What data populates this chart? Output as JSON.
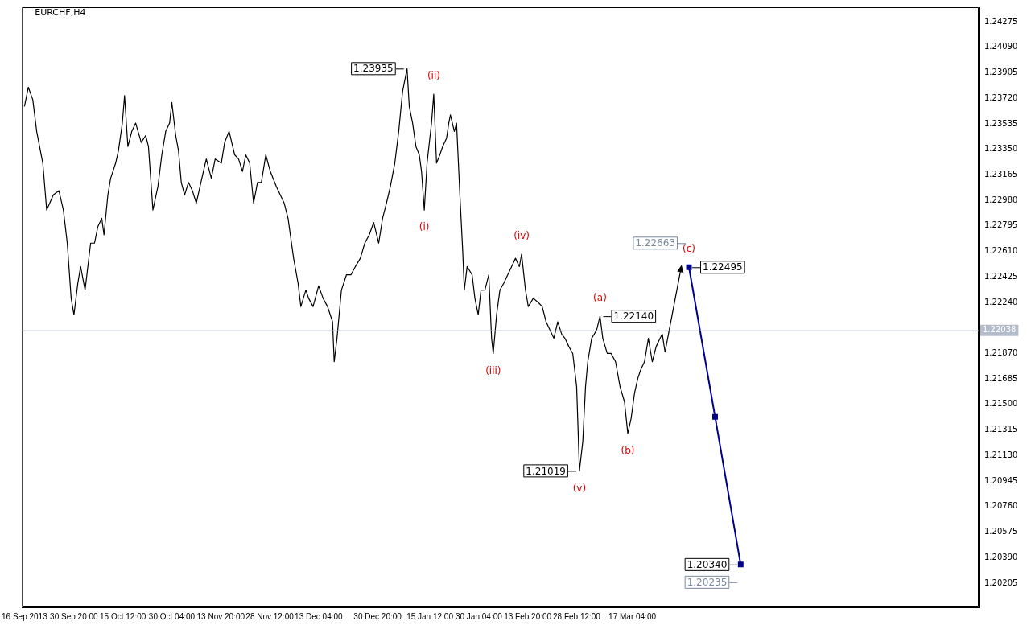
{
  "chart_data": {
    "type": "line",
    "title": "EURCHF,H4",
    "xlim": [
      "2013-09-15T06:00",
      "2014-06-29T00:00"
    ],
    "ylim": [
      1.2003,
      1.2438
    ],
    "xticks": [
      {
        "value": "2013-09-16T00:00",
        "label": "16 Sep 2013"
      },
      {
        "value": "2013-09-30T20:00",
        "label": "30 Sep 20:00"
      },
      {
        "value": "2013-10-15T12:00",
        "label": "15 Oct 12:00"
      },
      {
        "value": "2013-10-30T04:00",
        "label": "30 Oct 04:00"
      },
      {
        "value": "2013-11-13T20:00",
        "label": "13 Nov 20:00"
      },
      {
        "value": "2013-11-28T12:00",
        "label": "28 Nov 12:00"
      },
      {
        "value": "2013-12-13T04:00",
        "label": "13 Dec 04:00"
      },
      {
        "value": "2013-12-30T20:00",
        "label": "30 Dec 20:00"
      },
      {
        "value": "2014-01-15T12:00",
        "label": "15 Jan 12:00"
      },
      {
        "value": "2014-01-30T04:00",
        "label": "30 Jan 04:00"
      },
      {
        "value": "2014-02-13T20:00",
        "label": "13 Feb 20:00"
      },
      {
        "value": "2014-02-28T12:00",
        "label": "28 Feb 12:00"
      },
      {
        "value": "2014-03-17T04:00",
        "label": "17 Mar 04:00"
      }
    ],
    "yticks": [
      {
        "value": 1.24275,
        "label": "1.24275"
      },
      {
        "value": 1.2409,
        "label": "1.24090"
      },
      {
        "value": 1.23905,
        "label": "1.23905"
      },
      {
        "value": 1.2372,
        "label": "1.23720"
      },
      {
        "value": 1.23535,
        "label": "1.23535"
      },
      {
        "value": 1.2335,
        "label": "1.23350"
      },
      {
        "value": 1.23165,
        "label": "1.23165"
      },
      {
        "value": 1.2298,
        "label": "1.22980"
      },
      {
        "value": 1.22795,
        "label": "1.22795"
      },
      {
        "value": 1.2261,
        "label": "1.22610"
      },
      {
        "value": 1.22425,
        "label": "1.22425"
      },
      {
        "value": 1.2224,
        "label": "1.22240"
      },
      {
        "value": 1.2187,
        "label": "1.21870"
      },
      {
        "value": 1.21685,
        "label": "1.21685"
      },
      {
        "value": 1.215,
        "label": "1.21500"
      },
      {
        "value": 1.21315,
        "label": "1.21315"
      },
      {
        "value": 1.2113,
        "label": "1.21130"
      },
      {
        "value": 1.20945,
        "label": "1.20945"
      },
      {
        "value": 1.2076,
        "label": "1.20760"
      },
      {
        "value": 1.20575,
        "label": "1.20575"
      },
      {
        "value": 1.2039,
        "label": "1.20390"
      },
      {
        "value": 1.20205,
        "label": "1.20205"
      }
    ],
    "grid": false,
    "legend": false,
    "series": [
      {
        "color": "#000000",
        "x": [
          "2013-09-16T00:00",
          "2013-09-17T04:00",
          "2013-09-18T12:00",
          "2013-09-19T16:00",
          "2013-09-21T12:00",
          "2013-09-22T16:00",
          "2013-09-24T16:00",
          "2013-09-26T08:00",
          "2013-09-27T16:00",
          "2013-09-28T20:00",
          "2013-09-30T00:00",
          "2013-09-30T20:00",
          "2013-10-02T00:00",
          "2013-10-02T20:00",
          "2013-10-04T04:00",
          "2013-10-05T20:00",
          "2013-10-07T00:00",
          "2013-10-08T00:00",
          "2013-10-09T04:00",
          "2013-10-09T20:00",
          "2013-10-11T00:00",
          "2013-10-11T20:00",
          "2013-10-13T08:00",
          "2013-10-14T04:00",
          "2013-10-15T08:00",
          "2013-10-16T00:00",
          "2013-10-17T00:00",
          "2013-10-18T04:00",
          "2013-10-19T08:00",
          "2013-10-21T00:00",
          "2013-10-22T08:00",
          "2013-10-23T04:00",
          "2013-10-23T20:00",
          "2013-10-24T12:00",
          "2013-10-26T00:00",
          "2013-10-27T04:00",
          "2013-10-28T08:00",
          "2013-10-29T12:00",
          "2013-10-30T04:00",
          "2013-10-31T08:00",
          "2013-11-01T04:00",
          "2013-11-02T00:00",
          "2013-11-03T00:00",
          "2013-11-04T04:00",
          "2013-11-05T08:00",
          "2013-11-06T12:00",
          "2013-11-08T04:00",
          "2013-11-09T12:00",
          "2013-11-11T00:00",
          "2013-11-12T04:00",
          "2013-11-14T00:00",
          "2013-11-15T00:00",
          "2013-11-16T08:00",
          "2013-11-18T00:00",
          "2013-11-19T04:00",
          "2013-11-20T08:00",
          "2013-11-21T08:00",
          "2013-11-22T12:00",
          "2013-11-23T16:00",
          "2013-11-24T20:00",
          "2013-11-26T00:00",
          "2013-11-27T08:00",
          "2013-11-28T16:00",
          "2013-11-30T12:00",
          "2013-12-02T20:00",
          "2013-12-04T00:00",
          "2013-12-05T16:00",
          "2013-12-07T00:00",
          "2013-12-07T20:00",
          "2013-12-09T08:00",
          "2013-12-10T04:00",
          "2013-12-11T12:00",
          "2013-12-13T04:00",
          "2013-12-14T12:00",
          "2013-12-15T20:00",
          "2013-12-17T08:00",
          "2013-12-17T20:00",
          "2013-12-18T16:00",
          "2013-12-20T00:00",
          "2013-12-21T12:00",
          "2013-12-22T20:00",
          "2013-12-24T04:00",
          "2013-12-25T16:00",
          "2013-12-27T00:00",
          "2013-12-28T08:00",
          "2013-12-29T16:00",
          "2013-12-31T04:00",
          "2014-01-01T08:00",
          "2014-01-02T12:00",
          "2014-01-03T16:00",
          "2014-01-05T00:00",
          "2014-01-06T04:00",
          "2014-01-07T08:00",
          "2014-01-08T16:00",
          "2014-01-09T08:00",
          "2014-01-10T08:00",
          "2014-01-11T08:00",
          "2014-01-12T08:00",
          "2014-01-13T00:00",
          "2014-01-13T20:00",
          "2014-01-14T16:00",
          "2014-01-16T00:00",
          "2014-01-16T16:00",
          "2014-01-17T12:00",
          "2014-01-18T12:00",
          "2014-01-19T08:00",
          "2014-01-20T12:00",
          "2014-01-21T04:00",
          "2014-01-21T16:00",
          "2014-01-22T20:00",
          "2014-01-23T12:00",
          "2014-01-24T12:00",
          "2014-01-25T08:00",
          "2014-01-25T20:00",
          "2014-01-26T16:00",
          "2014-01-28T04:00",
          "2014-01-29T00:00",
          "2014-01-30T00:00",
          "2014-01-30T20:00",
          "2014-02-01T00:00",
          "2014-02-02T04:00",
          "2014-02-03T00:00",
          "2014-02-03T12:00",
          "2014-02-04T12:00",
          "2014-02-05T12:00",
          "2014-02-06T16:00",
          "2014-02-07T20:00",
          "2014-02-09T00:00",
          "2014-02-10T04:00",
          "2014-02-11T08:00",
          "2014-02-12T00:00",
          "2014-02-13T04:00",
          "2014-02-14T00:00",
          "2014-02-15T12:00",
          "2014-02-17T00:00",
          "2014-02-18T04:00",
          "2014-02-19T08:00",
          "2014-02-20T12:00",
          "2014-02-21T16:00",
          "2014-02-22T20:00",
          "2014-02-24T00:00",
          "2014-02-25T00:00",
          "2014-02-26T04:00",
          "2014-02-27T08:00",
          "2014-02-28T12:00",
          "2014-03-01T08:00",
          "2014-03-02T08:00",
          "2014-03-03T04:00",
          "2014-03-03T20:00",
          "2014-03-05T00:00",
          "2014-03-06T12:00",
          "2014-03-07T12:00",
          "2014-03-08T08:00",
          "2014-03-09T16:00",
          "2014-03-10T20:00",
          "2014-03-12T04:00",
          "2014-03-13T12:00",
          "2014-03-14T20:00",
          "2014-03-15T20:00",
          "2014-03-16T20:00",
          "2014-03-17T20:00",
          "2014-03-18T20:00",
          "2014-03-19T16:00",
          "2014-03-20T20:00",
          "2014-03-22T00:00",
          "2014-03-23T04:00",
          "2014-03-24T08:00",
          "2014-03-25T12:00",
          "2014-03-26T04:00",
          "2014-03-27T00:00"
        ],
        "values": [
          1.2366,
          1.238,
          1.2371,
          1.2348,
          1.2325,
          1.2291,
          1.2302,
          1.2305,
          1.2291,
          1.2267,
          1.2227,
          1.2215,
          1.2238,
          1.225,
          1.2233,
          1.2267,
          1.2267,
          1.2279,
          1.2285,
          1.2273,
          1.2302,
          1.2314,
          1.2325,
          1.2334,
          1.2354,
          1.2374,
          1.2337,
          1.2348,
          1.2354,
          1.234,
          1.2345,
          1.2337,
          1.2314,
          1.2291,
          1.2308,
          1.2331,
          1.2348,
          1.2354,
          1.2369,
          1.2345,
          1.2334,
          1.2311,
          1.2302,
          1.2311,
          1.2305,
          1.2296,
          1.2314,
          1.2328,
          1.2314,
          1.2328,
          1.2325,
          1.234,
          1.2348,
          1.2331,
          1.2328,
          1.2319,
          1.2331,
          1.2325,
          1.2296,
          1.2311,
          1.2311,
          1.2331,
          1.2319,
          1.2308,
          1.2296,
          1.2285,
          1.2256,
          1.2238,
          1.2221,
          1.2233,
          1.2227,
          1.2221,
          1.2236,
          1.2227,
          1.2221,
          1.221,
          1.2181,
          1.2198,
          1.2233,
          1.2244,
          1.2244,
          1.225,
          1.2256,
          1.2267,
          1.2273,
          1.2282,
          1.2267,
          1.2285,
          1.2296,
          1.2308,
          1.2325,
          1.2348,
          1.2377,
          1.23935,
          1.2366,
          1.2354,
          1.2337,
          1.2331,
          1.2319,
          1.2291,
          1.2325,
          1.2354,
          1.2375,
          1.2325,
          1.2331,
          1.2337,
          1.2343,
          1.2354,
          1.236,
          1.2348,
          1.2354,
          1.2302,
          1.2262,
          1.2233,
          1.225,
          1.2244,
          1.2227,
          1.2215,
          1.2233,
          1.2233,
          1.2244,
          1.2198,
          1.2187,
          1.2215,
          1.2233,
          1.2238,
          1.2244,
          1.225,
          1.2256,
          1.225,
          1.2259,
          1.2233,
          1.2221,
          1.2227,
          1.2224,
          1.2221,
          1.221,
          1.2204,
          1.2198,
          1.221,
          1.2201,
          1.2198,
          1.2192,
          1.2187,
          1.2163,
          1.21019,
          1.2123,
          1.2163,
          1.2181,
          1.2198,
          1.2204,
          1.2214,
          1.2198,
          1.2187,
          1.2187,
          1.2181,
          1.2163,
          1.2152,
          1.2129,
          1.214,
          1.2158,
          1.2169,
          1.2175,
          1.2181,
          1.2198,
          1.2181,
          1.2192,
          1.2198,
          1.2201,
          1.2188
        ]
      },
      {
        "color": "#000000",
        "x": [
          "2014-03-27T00:00",
          "2014-03-31T20:00"
        ],
        "values": [
          1.2188,
          1.22495
        ]
      },
      {
        "color": "#00008b",
        "marker": "square",
        "x": [
          "2014-04-03T04:00",
          "2014-04-11T00:00",
          "2014-04-18T16:00"
        ],
        "values": [
          1.22495,
          1.2141,
          1.2034
        ]
      }
    ],
    "ref_lines": [
      {
        "axis": "y",
        "value": 1.22038,
        "label": "1.22038",
        "color": "#b4bccc"
      }
    ],
    "annotations": [
      {
        "text": "1.23935",
        "x": "2014-01-08T16:00",
        "y": 1.23935
      },
      {
        "text": "(i)",
        "x": "2014-01-13T20:00",
        "y": 1.2291
      },
      {
        "text": "(ii)",
        "x": "2014-01-16T16:00",
        "y": 1.2375
      },
      {
        "text": "(iii)",
        "x": "2014-02-03T12:00",
        "y": 1.2187
      },
      {
        "text": "(iv)",
        "x": "2014-02-12T00:00",
        "y": 1.2259
      },
      {
        "text": "(v)",
        "x": "2014-03-01T08:00",
        "y": 1.21019
      },
      {
        "text": "1.21019",
        "x": "2014-03-01T08:00",
        "y": 1.21019
      },
      {
        "text": "(a)",
        "x": "2014-03-07T12:00",
        "y": 1.2214
      },
      {
        "text": "1.22140",
        "x": "2014-03-07T12:00",
        "y": 1.2214
      },
      {
        "text": "(b)",
        "x": "2014-03-15T20:00",
        "y": 1.2129
      },
      {
        "text": "(c)",
        "x": "2014-04-03T04:00",
        "y": 1.22495
      },
      {
        "text": "1.22495",
        "x": "2014-04-03T04:00",
        "y": 1.22495
      },
      "1.22663",
      {
        "text": "1.20340",
        "x": "2014-04-18T16:00",
        "y": 1.2034
      },
      "1.20235"
    ]
  }
}
